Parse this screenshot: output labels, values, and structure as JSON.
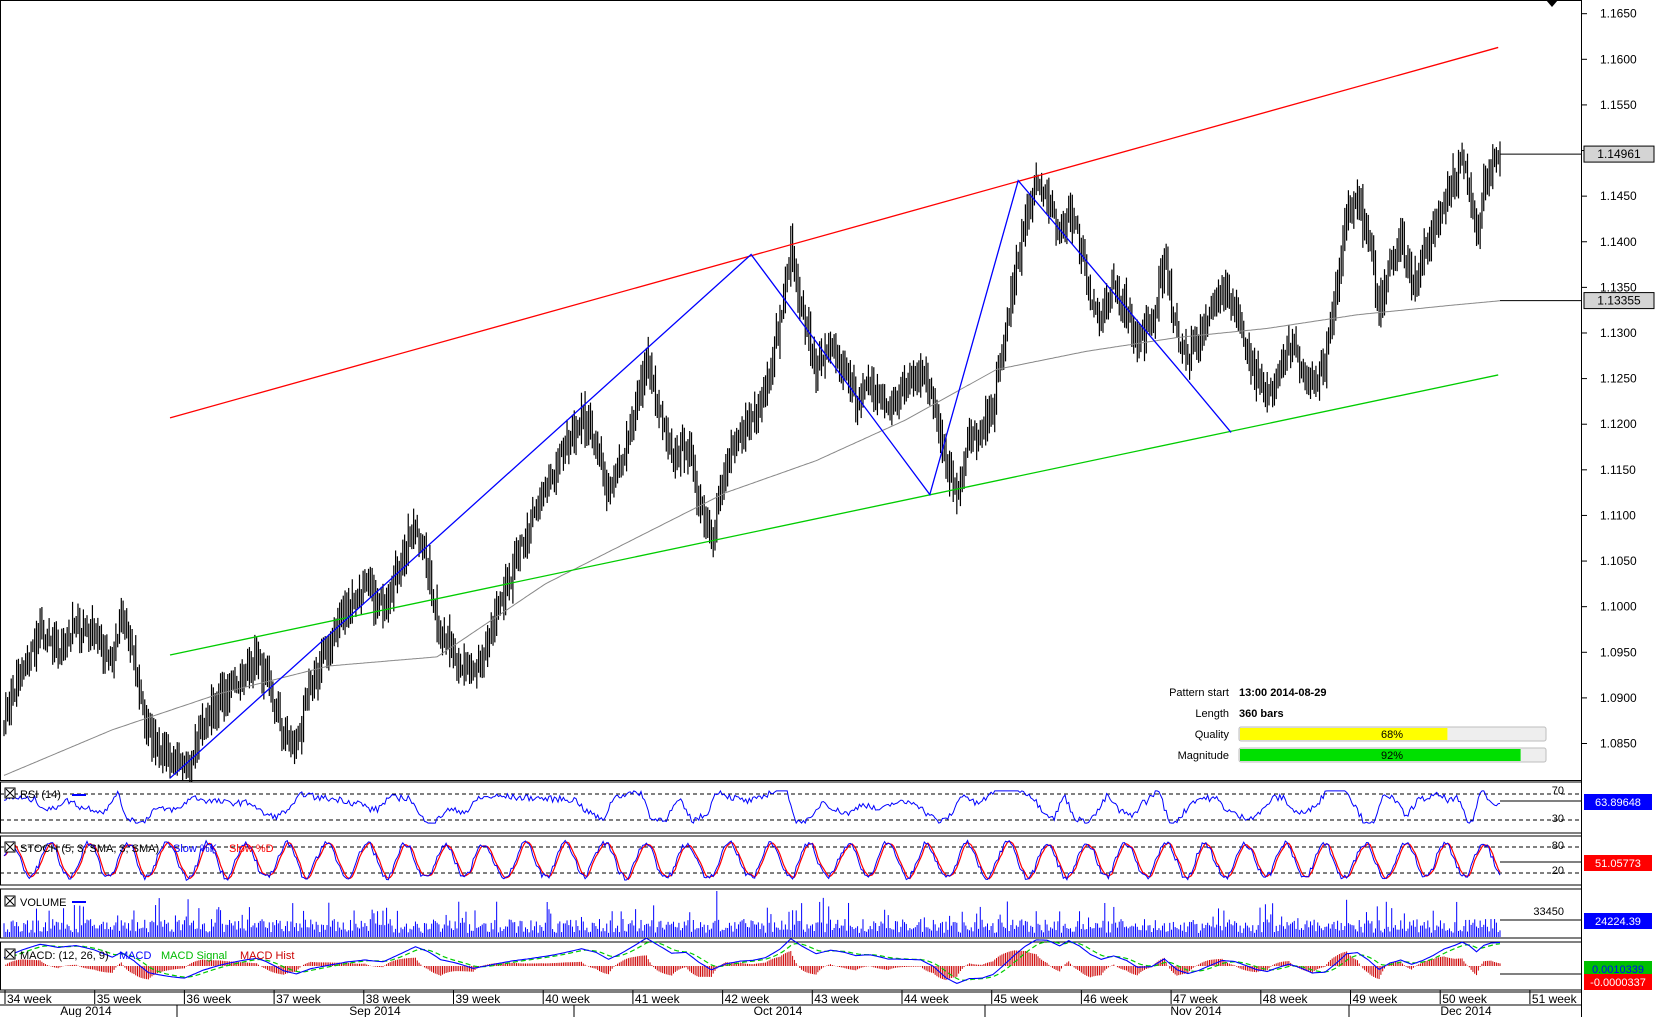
{
  "chart_data": {
    "type": "candlestick",
    "price_axis": {
      "ylim": [
        1.081,
        1.1665
      ],
      "ticks": [
        "1.1650",
        "1.1600",
        "1.1550",
        "1.1500",
        "1.1450",
        "1.1400",
        "1.1350",
        "1.1300",
        "1.1250",
        "1.1200",
        "1.1150",
        "1.1100",
        "1.1050",
        "1.1000",
        "1.0950",
        "1.0900",
        "1.0850"
      ],
      "tick_values": [
        1.165,
        1.16,
        1.155,
        1.15,
        1.145,
        1.14,
        1.135,
        1.13,
        1.125,
        1.12,
        1.115,
        1.11,
        1.105,
        1.1,
        1.095,
        1.09,
        1.085
      ],
      "last_price_label": "1.14961",
      "last_price": 1.14961,
      "ma_label": "1.13355",
      "ma_value": 1.13355
    },
    "x_axis": {
      "weeks": [
        "34 week",
        "35 week",
        "36 week",
        "37 week",
        "38 week",
        "39 week",
        "40 week",
        "41 week",
        "42 week",
        "43 week",
        "44 week",
        "45 week",
        "46 week",
        "47 week",
        "48 week",
        "49 week",
        "50 week",
        "51 week"
      ],
      "months": [
        "Aug 2014",
        "Sep 2014",
        "Oct 2014",
        "Nov 2014",
        "Dec 2014"
      ]
    },
    "price_anchors": [
      [
        0,
        1.088
      ],
      [
        10,
        1.093
      ],
      [
        20,
        1.097
      ],
      [
        30,
        1.095
      ],
      [
        40,
        1.098
      ],
      [
        50,
        1.097
      ],
      [
        60,
        1.094
      ],
      [
        65,
        1.099
      ],
      [
        72,
        1.094
      ],
      [
        80,
        1.086
      ],
      [
        90,
        1.084
      ],
      [
        100,
        1.082
      ],
      [
        110,
        1.087
      ],
      [
        120,
        1.09
      ],
      [
        130,
        1.092
      ],
      [
        140,
        1.094
      ],
      [
        145,
        1.092
      ],
      [
        155,
        1.086
      ],
      [
        162,
        1.085
      ],
      [
        170,
        1.091
      ],
      [
        180,
        1.096
      ],
      [
        190,
        1.1
      ],
      [
        200,
        1.102
      ],
      [
        210,
        1.1
      ],
      [
        220,
        1.105
      ],
      [
        228,
        1.109
      ],
      [
        235,
        1.104
      ],
      [
        242,
        1.097
      ],
      [
        250,
        1.095
      ],
      [
        260,
        1.092
      ],
      [
        268,
        1.096
      ],
      [
        275,
        1.1
      ],
      [
        282,
        1.104
      ],
      [
        290,
        1.108
      ],
      [
        298,
        1.112
      ],
      [
        305,
        1.115
      ],
      [
        312,
        1.118
      ],
      [
        320,
        1.121
      ],
      [
        328,
        1.118
      ],
      [
        335,
        1.112
      ],
      [
        342,
        1.116
      ],
      [
        350,
        1.122
      ],
      [
        356,
        1.127
      ],
      [
        362,
        1.122
      ],
      [
        370,
        1.116
      ],
      [
        378,
        1.118
      ],
      [
        385,
        1.112
      ],
      [
        392,
        1.108
      ],
      [
        400,
        1.115
      ],
      [
        408,
        1.119
      ],
      [
        415,
        1.121
      ],
      [
        422,
        1.124
      ],
      [
        430,
        1.131
      ],
      [
        436,
        1.139
      ],
      [
        442,
        1.133
      ],
      [
        450,
        1.126
      ],
      [
        458,
        1.128
      ],
      [
        465,
        1.126
      ],
      [
        472,
        1.123
      ],
      [
        480,
        1.124
      ],
      [
        490,
        1.122
      ],
      [
        500,
        1.124
      ],
      [
        508,
        1.126
      ],
      [
        515,
        1.123
      ],
      [
        522,
        1.116
      ],
      [
        528,
        1.113
      ],
      [
        535,
        1.118
      ],
      [
        542,
        1.119
      ],
      [
        548,
        1.122
      ],
      [
        555,
        1.13
      ],
      [
        560,
        1.136
      ],
      [
        566,
        1.142
      ],
      [
        572,
        1.146
      ],
      [
        578,
        1.145
      ],
      [
        585,
        1.14
      ],
      [
        590,
        1.144
      ],
      [
        596,
        1.14
      ],
      [
        602,
        1.134
      ],
      [
        608,
        1.131
      ],
      [
        615,
        1.135
      ],
      [
        622,
        1.133
      ],
      [
        628,
        1.129
      ],
      [
        636,
        1.131
      ],
      [
        643,
        1.138
      ],
      [
        650,
        1.13
      ],
      [
        656,
        1.127
      ],
      [
        662,
        1.129
      ],
      [
        668,
        1.132
      ],
      [
        675,
        1.135
      ],
      [
        682,
        1.133
      ],
      [
        688,
        1.129
      ],
      [
        694,
        1.125
      ],
      [
        700,
        1.123
      ],
      [
        706,
        1.126
      ],
      [
        712,
        1.129
      ],
      [
        718,
        1.127
      ],
      [
        725,
        1.124
      ],
      [
        732,
        1.126
      ],
      [
        738,
        1.134
      ],
      [
        744,
        1.143
      ],
      [
        750,
        1.145
      ],
      [
        756,
        1.14
      ],
      [
        762,
        1.133
      ],
      [
        768,
        1.138
      ],
      [
        774,
        1.14
      ],
      [
        780,
        1.136
      ],
      [
        786,
        1.138
      ],
      [
        792,
        1.141
      ],
      [
        798,
        1.145
      ],
      [
        804,
        1.147
      ],
      [
        808,
        1.149
      ],
      [
        812,
        1.146
      ],
      [
        816,
        1.141
      ],
      [
        820,
        1.146
      ],
      [
        824,
        1.148
      ],
      [
        830,
        1.149
      ]
    ],
    "sma_anchors": [
      [
        0,
        1.0815
      ],
      [
        60,
        1.0865
      ],
      [
        120,
        1.0905
      ],
      [
        180,
        1.0935
      ],
      [
        240,
        1.0945
      ],
      [
        300,
        1.1025
      ],
      [
        350,
        1.1075
      ],
      [
        400,
        1.1125
      ],
      [
        450,
        1.116
      ],
      [
        500,
        1.1205
      ],
      [
        550,
        1.126
      ],
      [
        600,
        1.128
      ],
      [
        650,
        1.1295
      ],
      [
        700,
        1.1305
      ],
      [
        750,
        1.132
      ],
      [
        800,
        1.133
      ],
      [
        830,
        1.13355
      ]
    ],
    "channel": {
      "upper": {
        "name": "resistance",
        "from": [
          92,
          1.1207
        ],
        "to": [
          828,
          1.1613
        ],
        "color": "#ff0000"
      },
      "lower": {
        "name": "support",
        "from": [
          92,
          1.0947
        ],
        "to": [
          828,
          1.1254
        ],
        "color": "#00cc00"
      }
    },
    "zigzag": [
      [
        92,
        1.0812
      ],
      [
        414,
        1.1386
      ],
      [
        513,
        1.1123
      ],
      [
        562,
        1.1467
      ],
      [
        650,
        1.1262
      ],
      [
        680,
        1.1191
      ]
    ],
    "pattern_info": {
      "labels": {
        "start": "Pattern start",
        "length": "Length",
        "quality": "Quality",
        "magnitude": "Magnitude"
      },
      "start_value": "13:00 2014-08-29",
      "length_value": "360 bars",
      "quality_label": "68%",
      "quality": 0.68,
      "magnitude_label": "92%",
      "magnitude": 0.92,
      "quality_color": "#ffff00",
      "magnitude_color": "#00e000"
    },
    "indicators": {
      "rsi": {
        "label": "RSI (14)",
        "value": "63.89648",
        "levels": [
          "70",
          "30"
        ]
      },
      "stoch": {
        "label_main": "STOCH (5, 3, SMA, 3, SMA)",
        "label_fast": "Slow %K",
        "label_slow": "Slow %D",
        "value": "51.05773",
        "levels": [
          "80",
          "20"
        ]
      },
      "volume": {
        "label": "VOLUME",
        "value": "24224.39",
        "tick": "33450"
      },
      "macd": {
        "label_main": "MACD: (12, 26, 9)",
        "label_macd": "MACD",
        "label_signal": "MACD Signal",
        "label_hist": "MACD Hist",
        "value_macd": "0.0010339",
        "value_signal": "-0.0000337"
      }
    },
    "colors": {
      "bar": "#000000",
      "sma": "#888888",
      "zigzag": "#0000ff",
      "rsi": "#0000ff",
      "stoch_k": "#0000ff",
      "stoch_d": "#ff0000",
      "volume": "#0000ff",
      "macd": "#0000ff",
      "signal": "#00cc00",
      "hist": "#cc0000",
      "last_price_box": "#d4d4d4",
      "indicator_box": "#0000ff"
    }
  }
}
